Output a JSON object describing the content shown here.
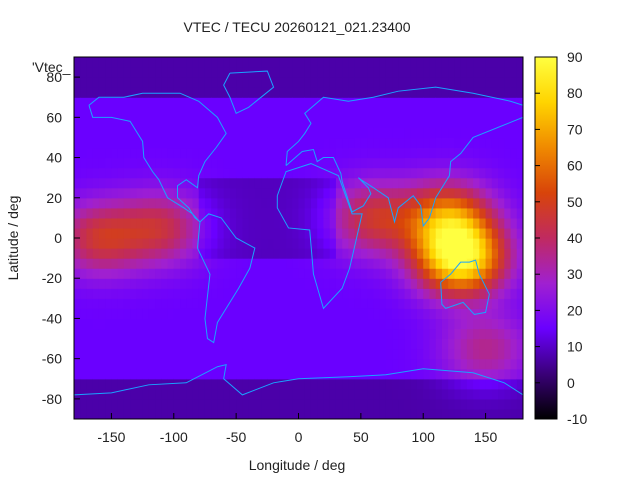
{
  "chart_data": {
    "type": "heatmap",
    "title": "VTEC / TECU 20260121_021.23400",
    "xlabel": "Longitude / deg",
    "ylabel": "Latitude / deg",
    "key_text": "'Vtec_",
    "xlim": [
      -180,
      180
    ],
    "ylim": [
      -90,
      90
    ],
    "x_ticks": [
      -150,
      -100,
      -50,
      0,
      50,
      100,
      150
    ],
    "y_ticks": [
      -80,
      -60,
      -40,
      -20,
      0,
      20,
      40,
      60,
      80
    ],
    "colorbar": {
      "range": [
        -10,
        90
      ],
      "ticks": [
        -10,
        0,
        10,
        20,
        30,
        40,
        50,
        60,
        70,
        80,
        90
      ],
      "palette_stops": [
        "#000000",
        "#3a0078",
        "#6a00ff",
        "#a020d0",
        "#c02a60",
        "#d8440a",
        "#f08a00",
        "#ffd400",
        "#ffff40"
      ]
    },
    "coastline_color": "#1aa3ff",
    "field_description_values": {
      "background_level": 15,
      "blobs": [
        {
          "lon": 120,
          "lat": 10,
          "value": 60
        },
        {
          "lon": 130,
          "lat": -10,
          "value": 85
        },
        {
          "lon": 60,
          "lat": 10,
          "value": 45
        },
        {
          "lon": -160,
          "lat": 0,
          "value": 45
        },
        {
          "lon": -110,
          "lat": 5,
          "value": 42
        },
        {
          "lon": 150,
          "lat": -55,
          "value": 35
        }
      ]
    }
  }
}
